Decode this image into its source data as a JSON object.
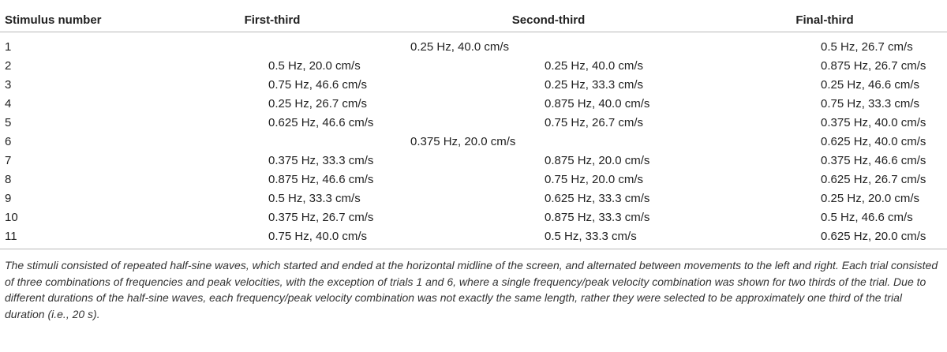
{
  "table": {
    "headers": [
      "Stimulus number",
      "First-third",
      "Second-third",
      "Final-third"
    ],
    "rows": [
      {
        "num": "1",
        "merged": "0.25 Hz, 40.0 cm/s",
        "final": "0.5 Hz, 26.7 cm/s"
      },
      {
        "num": "2",
        "first": "0.5 Hz, 20.0 cm/s",
        "second": "0.25 Hz, 40.0 cm/s",
        "final": "0.875 Hz, 26.7 cm/s"
      },
      {
        "num": "3",
        "first": "0.75 Hz, 46.6 cm/s",
        "second": "0.25 Hz, 33.3 cm/s",
        "final": "0.25 Hz, 46.6 cm/s"
      },
      {
        "num": "4",
        "first": "0.25 Hz, 26.7 cm/s",
        "second": "0.875 Hz, 40.0 cm/s",
        "final": "0.75 Hz, 33.3 cm/s"
      },
      {
        "num": "5",
        "first": "0.625 Hz, 46.6 cm/s",
        "second": "0.75 Hz, 26.7 cm/s",
        "final": "0.375 Hz, 40.0 cm/s"
      },
      {
        "num": "6",
        "merged": "0.375 Hz, 20.0 cm/s",
        "final": "0.625 Hz, 40.0 cm/s"
      },
      {
        "num": "7",
        "first": "0.375 Hz, 33.3 cm/s",
        "second": "0.875 Hz, 20.0 cm/s",
        "final": "0.375 Hz, 46.6 cm/s"
      },
      {
        "num": "8",
        "first": "0.875 Hz, 46.6 cm/s",
        "second": "0.75 Hz, 20.0 cm/s",
        "final": "0.625 Hz, 26.7 cm/s"
      },
      {
        "num": "9",
        "first": "0.5 Hz, 33.3 cm/s",
        "second": "0.625 Hz, 33.3 cm/s",
        "final": "0.25 Hz, 20.0 cm/s"
      },
      {
        "num": "10",
        "first": "0.375 Hz, 26.7 cm/s",
        "second": "0.875 Hz, 33.3 cm/s",
        "final": "0.5 Hz, 46.6 cm/s"
      },
      {
        "num": "11",
        "first": "0.75 Hz, 40.0 cm/s",
        "second": "0.5 Hz, 33.3 cm/s",
        "final": "0.625 Hz, 20.0 cm/s"
      }
    ]
  },
  "footnote": "The stimuli consisted of repeated half-sine waves, which started and ended at the horizontal midline of the screen, and alternated between movements to the left and right. Each trial consisted of three combinations of frequencies and peak velocities, with the exception of trials 1 and 6, where a single frequency/peak velocity combination was shown for two thirds of the trial. Due to different durations of the half-sine waves, each frequency/peak velocity combination was not exactly the same length, rather they were selected to be approximately one third of the trial duration (i.e., 20 s)."
}
